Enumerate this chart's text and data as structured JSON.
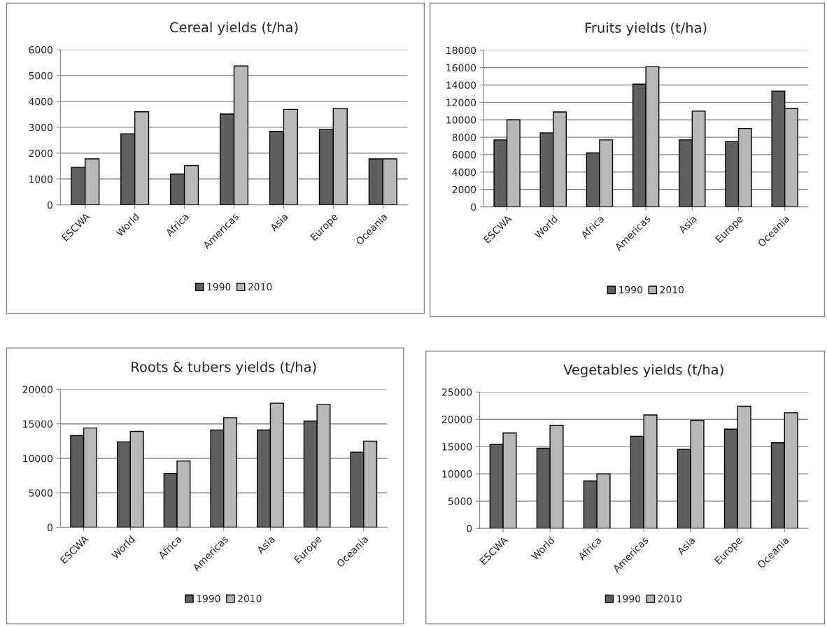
{
  "chart_data": [
    {
      "type": "bar",
      "title": "Cereal yields (t/ha)",
      "categories": [
        "ESCWA",
        "World",
        "Africa",
        "Americas",
        "Asia",
        "Europe",
        "Oceania"
      ],
      "series": [
        {
          "name": "1990",
          "color": "#5f5f5f",
          "values": [
            1450,
            2750,
            1190,
            3510,
            2840,
            2920,
            1780
          ]
        },
        {
          "name": "2010",
          "color": "#b8b8b8",
          "values": [
            1780,
            3600,
            1520,
            5370,
            3690,
            3730,
            1780
          ]
        }
      ],
      "ylim": [
        0,
        6000
      ],
      "yticks": [
        0,
        1000,
        2000,
        3000,
        4000,
        5000,
        6000
      ],
      "grid": "y",
      "legend": "bottom"
    },
    {
      "type": "bar",
      "title": "Fruits yields (t/ha)",
      "categories": [
        "ESCWA",
        "World",
        "Africa",
        "Americas",
        "Asia",
        "Europe",
        "Oceania"
      ],
      "series": [
        {
          "name": "1990",
          "color": "#5f5f5f",
          "values": [
            7700,
            8500,
            6200,
            14100,
            7700,
            7500,
            13300
          ]
        },
        {
          "name": "2010",
          "color": "#b8b8b8",
          "values": [
            10000,
            10900,
            7700,
            16100,
            11000,
            9000,
            11300
          ]
        }
      ],
      "ylim": [
        0,
        18000
      ],
      "yticks": [
        0,
        2000,
        4000,
        6000,
        8000,
        10000,
        12000,
        14000,
        16000,
        18000
      ],
      "grid": "y",
      "legend": "bottom"
    },
    {
      "type": "bar",
      "title": "Roots & tubers yields (t/ha)",
      "categories": [
        "ESCWA",
        "World",
        "Africa",
        "Americas",
        "Asia",
        "Europe",
        "Oceania"
      ],
      "series": [
        {
          "name": "1990",
          "color": "#5f5f5f",
          "values": [
            13300,
            12400,
            7800,
            14100,
            14100,
            15400,
            10900
          ]
        },
        {
          "name": "2010",
          "color": "#b8b8b8",
          "values": [
            14400,
            13900,
            9600,
            15900,
            18000,
            17800,
            12500
          ]
        }
      ],
      "ylim": [
        0,
        20000
      ],
      "yticks": [
        0,
        5000,
        10000,
        15000,
        20000
      ],
      "grid": "y",
      "legend": "bottom"
    },
    {
      "type": "bar",
      "title": "Vegetables yields (t/ha)",
      "categories": [
        "ESCWA",
        "World",
        "Africa",
        "Americas",
        "Asia",
        "Europe",
        "Oceania"
      ],
      "series": [
        {
          "name": "1990",
          "color": "#5f5f5f",
          "values": [
            15400,
            14700,
            8700,
            16900,
            14500,
            18200,
            15700
          ]
        },
        {
          "name": "2010",
          "color": "#b8b8b8",
          "values": [
            17500,
            18900,
            10000,
            20800,
            19800,
            22400,
            21200
          ]
        }
      ],
      "ylim": [
        0,
        25000
      ],
      "yticks": [
        0,
        5000,
        10000,
        15000,
        20000,
        25000
      ],
      "grid": "y",
      "legend": "bottom"
    }
  ]
}
